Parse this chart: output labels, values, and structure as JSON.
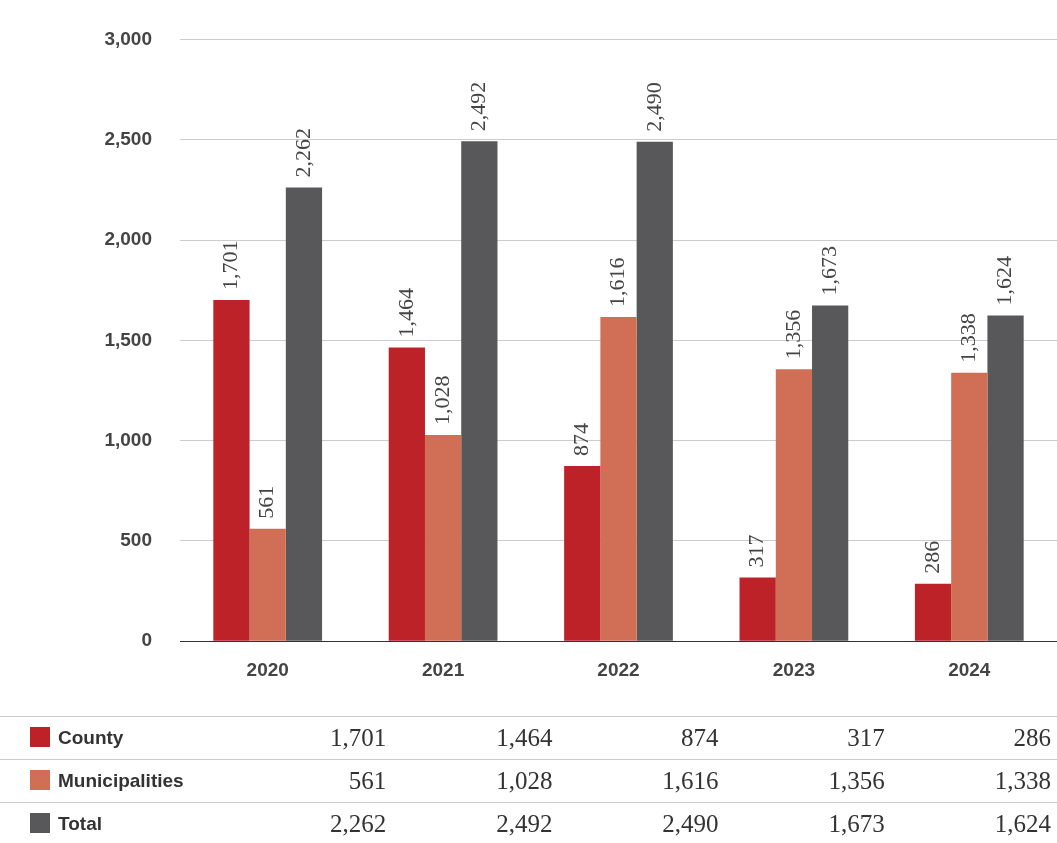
{
  "chart_data": {
    "type": "bar",
    "categories": [
      "2020",
      "2021",
      "2022",
      "2023",
      "2024"
    ],
    "series": [
      {
        "name": "County",
        "color": "#bd2229",
        "values": [
          1701,
          1464,
          874,
          317,
          286
        ],
        "value_labels": [
          "1,701",
          "1,464",
          "874",
          "317",
          "286"
        ]
      },
      {
        "name": "Municipalities",
        "color": "#d06e56",
        "values": [
          561,
          1028,
          1616,
          1356,
          1338
        ],
        "value_labels": [
          "561",
          "1,028",
          "1,616",
          "1,356",
          "1,338"
        ]
      },
      {
        "name": "Total",
        "color": "#58585a",
        "values": [
          2262,
          2492,
          2490,
          1673,
          1624
        ],
        "value_labels": [
          "2,262",
          "2,492",
          "2,490",
          "1,673",
          "1,624"
        ]
      }
    ],
    "ylim": [
      0,
      3000
    ],
    "yticks": [
      {
        "value": 0,
        "label": "0"
      },
      {
        "value": 500,
        "label": "500"
      },
      {
        "value": 1000,
        "label": "1,000"
      },
      {
        "value": 1500,
        "label": "1,500"
      },
      {
        "value": 2000,
        "label": "2,000"
      },
      {
        "value": 2500,
        "label": "2,500"
      },
      {
        "value": 3000,
        "label": "3,000"
      }
    ],
    "grid": "y",
    "legend": "bottom"
  }
}
